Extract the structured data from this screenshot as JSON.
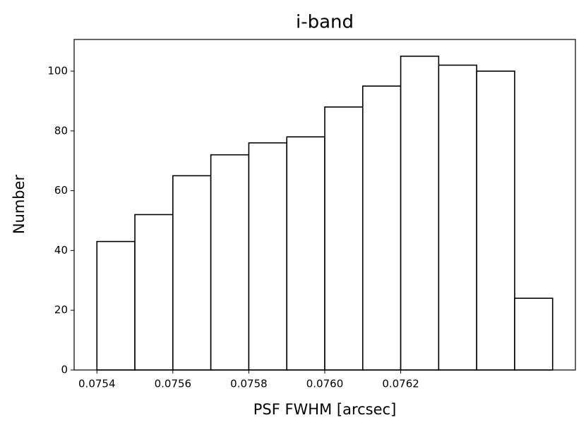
{
  "chart_data": {
    "type": "histogram",
    "title": "i-band",
    "xlabel": "PSF FWHM [arcsec]",
    "ylabel": "Number",
    "bins": [
      0.0754,
      0.0755,
      0.0756,
      0.0757,
      0.0758,
      0.0759,
      0.076,
      0.0761,
      0.0762,
      0.0763,
      0.0764,
      0.0765,
      0.0766
    ],
    "values": [
      43,
      52,
      65,
      72,
      76,
      78,
      88,
      95,
      105,
      102,
      100,
      24
    ],
    "color": "#ffffff",
    "edgecolor": "#000000",
    "xlim": [
      0.07534,
      0.07666
    ],
    "ylim": [
      0,
      110.6
    ],
    "xticks": [
      {
        "value": 0.0754,
        "label": "0.0754"
      },
      {
        "value": 0.0756,
        "label": "0.0756"
      },
      {
        "value": 0.0758,
        "label": "0.0758"
      },
      {
        "value": 0.076,
        "label": "0.0760"
      },
      {
        "value": 0.0762,
        "label": "0.0762"
      }
    ],
    "yticks": [
      0,
      20,
      40,
      60,
      80,
      100
    ]
  }
}
